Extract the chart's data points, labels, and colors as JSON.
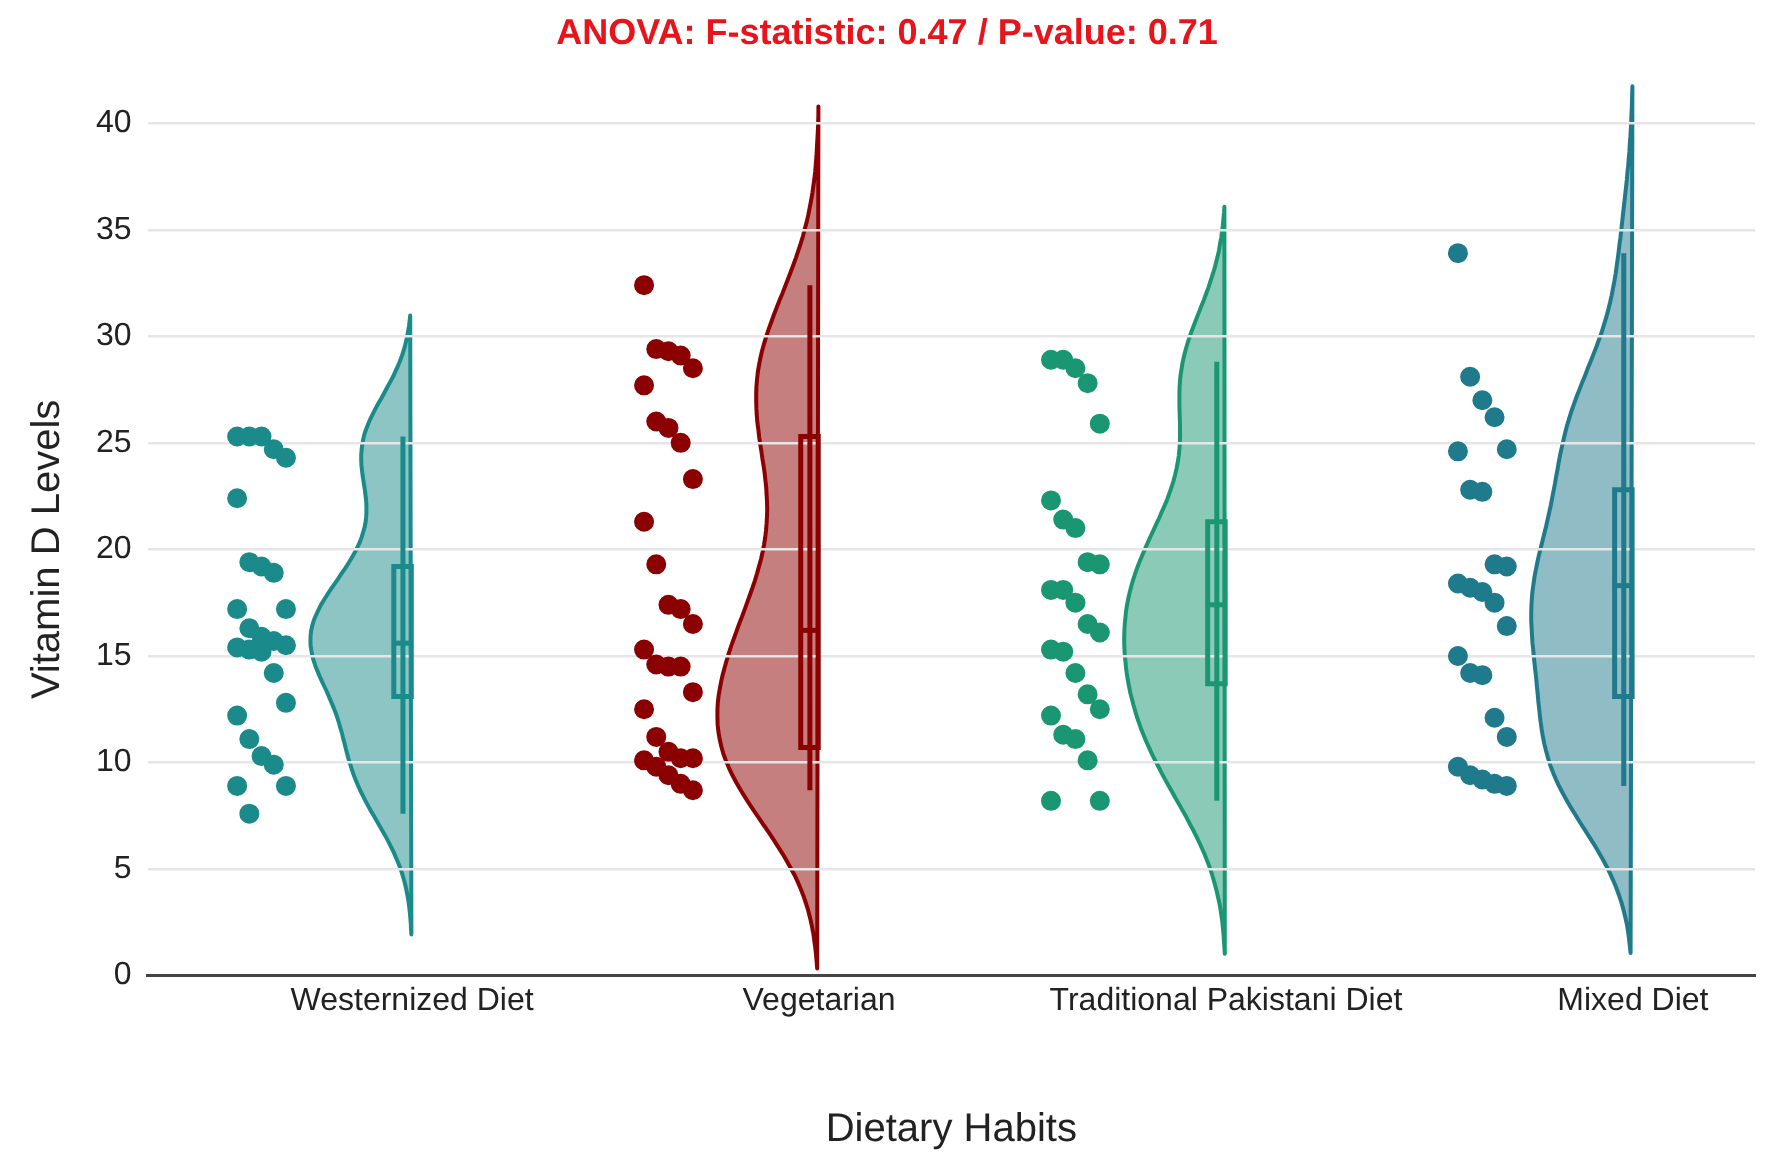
{
  "chart_data": {
    "type": "box",
    "title": "ANOVA: F-statistic: 0.47 / P-value: 0.71",
    "xlabel": "Dietary Habits",
    "ylabel": "Vitamin D Levels",
    "categories": [
      "Westernized Diet",
      "Vegetarian",
      "Traditional Pakistani Diet",
      "Mixed Diet"
    ],
    "ylim": [
      0,
      40
    ],
    "yticks": [
      0,
      5,
      10,
      15,
      20,
      25,
      30,
      35,
      40
    ],
    "grid": "y",
    "marker": "circle",
    "series": [
      {
        "colors": [
          "#1b8a8a",
          "#8b0000",
          "#1a9672",
          "#1f7a8c"
        ],
        "boxes": [
          {
            "low": 7.6,
            "q1": 13.1,
            "median": 15.6,
            "q3": 19.2,
            "high": 25.3
          },
          {
            "low": 8.7,
            "q1": 10.7,
            "median": 16.2,
            "q3": 25.3,
            "high": 32.4
          },
          {
            "low": 8.2,
            "q1": 13.7,
            "median": 17.4,
            "q3": 21.3,
            "high": 28.8
          },
          {
            "low": 8.9,
            "q1": 13.1,
            "median": 18.3,
            "q3": 22.8,
            "high": 33.9
          }
        ]
      },
      {
        "type": "scatter",
        "color": "#1b8a8a",
        "x": [
          "Westernized Diet",
          "Westernized Diet",
          "Westernized Diet",
          "Westernized Diet",
          "Westernized Diet",
          "Westernized Diet",
          "Westernized Diet",
          "Westernized Diet",
          "Westernized Diet",
          "Westernized Diet",
          "Westernized Diet",
          "Westernized Diet",
          "Westernized Diet",
          "Westernized Diet",
          "Westernized Diet",
          "Westernized Diet",
          "Westernized Diet",
          "Westernized Diet",
          "Westernized Diet",
          "Westernized Diet",
          "Westernized Diet",
          "Westernized Diet",
          "Westernized Diet",
          "Westernized Diet",
          "Westernized Diet",
          "Westernized Diet",
          "Westernized Diet"
        ],
        "values": [
          25.3,
          25.3,
          25.3,
          24.7,
          24.3,
          22.4,
          19.4,
          19.2,
          18.9,
          17.2,
          17.2,
          16.3,
          15.9,
          15.7,
          15.5,
          15.4,
          15.3,
          15.2,
          14.2,
          12.8,
          12.2,
          11.1,
          10.3,
          9.9,
          8.9,
          8.9,
          7.6
        ]
      },
      {
        "type": "scatter",
        "color": "#8b0000",
        "x": [
          "Vegetarian",
          "Vegetarian",
          "Vegetarian",
          "Vegetarian",
          "Vegetarian",
          "Vegetarian",
          "Vegetarian",
          "Vegetarian",
          "Vegetarian",
          "Vegetarian",
          "Vegetarian",
          "Vegetarian",
          "Vegetarian",
          "Vegetarian",
          "Vegetarian",
          "Vegetarian",
          "Vegetarian",
          "Vegetarian",
          "Vegetarian",
          "Vegetarian",
          "Vegetarian",
          "Vegetarian",
          "Vegetarian",
          "Vegetarian",
          "Vegetarian",
          "Vegetarian",
          "Vegetarian",
          "Vegetarian",
          "Vegetarian",
          "Vegetarian"
        ],
        "values": [
          32.4,
          29.4,
          29.3,
          29.1,
          28.5,
          27.7,
          26.0,
          25.7,
          25.0,
          23.3,
          21.3,
          19.3,
          17.4,
          17.2,
          16.5,
          15.3,
          14.6,
          14.5,
          14.5,
          13.3,
          12.5,
          11.2,
          10.5,
          10.2,
          10.2,
          10.1,
          9.8,
          9.4,
          9.0,
          8.7
        ]
      },
      {
        "type": "scatter",
        "color": "#1a9672",
        "x": [
          "Traditional Pakistani Diet",
          "Traditional Pakistani Diet",
          "Traditional Pakistani Diet",
          "Traditional Pakistani Diet",
          "Traditional Pakistani Diet",
          "Traditional Pakistani Diet",
          "Traditional Pakistani Diet",
          "Traditional Pakistani Diet",
          "Traditional Pakistani Diet",
          "Traditional Pakistani Diet",
          "Traditional Pakistani Diet",
          "Traditional Pakistani Diet",
          "Traditional Pakistani Diet",
          "Traditional Pakistani Diet",
          "Traditional Pakistani Diet",
          "Traditional Pakistani Diet",
          "Traditional Pakistani Diet",
          "Traditional Pakistani Diet",
          "Traditional Pakistani Diet",
          "Traditional Pakistani Diet",
          "Traditional Pakistani Diet",
          "Traditional Pakistani Diet",
          "Traditional Pakistani Diet",
          "Traditional Pakistani Diet",
          "Traditional Pakistani Diet",
          "Traditional Pakistani Diet"
        ],
        "values": [
          28.9,
          28.9,
          28.5,
          27.8,
          25.9,
          22.3,
          21.4,
          21.0,
          19.4,
          19.3,
          18.1,
          18.1,
          17.5,
          16.5,
          16.1,
          15.3,
          15.2,
          14.2,
          13.2,
          12.5,
          12.2,
          11.3,
          11.1,
          10.1,
          8.2,
          8.2
        ]
      },
      {
        "type": "scatter",
        "color": "#1f7a8c",
        "x": [
          "Mixed Diet",
          "Mixed Diet",
          "Mixed Diet",
          "Mixed Diet",
          "Mixed Diet",
          "Mixed Diet",
          "Mixed Diet",
          "Mixed Diet",
          "Mixed Diet",
          "Mixed Diet",
          "Mixed Diet",
          "Mixed Diet",
          "Mixed Diet",
          "Mixed Diet",
          "Mixed Diet",
          "Mixed Diet",
          "Mixed Diet",
          "Mixed Diet",
          "Mixed Diet",
          "Mixed Diet",
          "Mixed Diet",
          "Mixed Diet",
          "Mixed Diet",
          "Mixed Diet",
          "Mixed Diet"
        ],
        "values": [
          33.9,
          28.1,
          27.0,
          26.2,
          24.7,
          24.6,
          22.8,
          22.7,
          19.3,
          19.2,
          18.4,
          18.2,
          18.0,
          17.5,
          16.4,
          15.0,
          14.2,
          14.1,
          12.1,
          11.2,
          9.8,
          9.4,
          9.2,
          9.0,
          8.9
        ]
      }
    ]
  }
}
